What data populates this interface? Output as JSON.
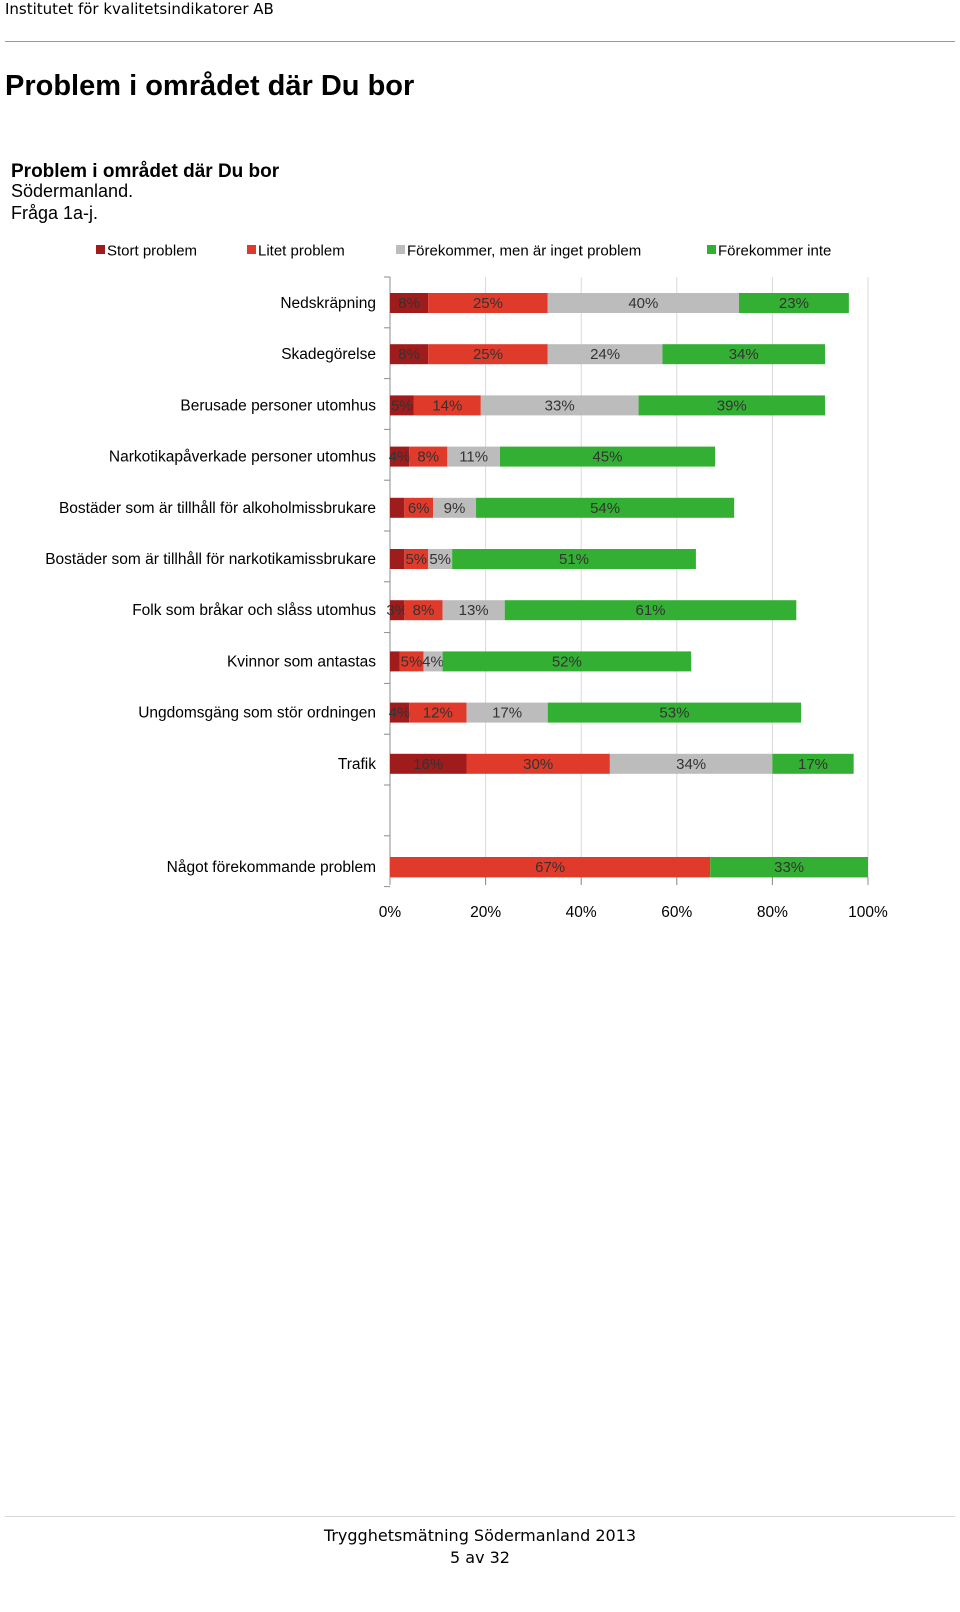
{
  "header": {
    "org": "Institutet för kvalitetsindikatorer AB"
  },
  "page_title": "Problem i området där Du bor",
  "chart_heading": {
    "title": "Problem i området där Du bor",
    "line1": "Södermanland.",
    "line2": "Fråga 1a-j."
  },
  "footer": {
    "line1": "Trygghetsmätning Södermanland 2013",
    "line2": "5 av 32"
  },
  "chart_data": {
    "type": "bar",
    "orientation": "horizontal",
    "stacked": true,
    "xlim": [
      0,
      100
    ],
    "x_ticks": [
      "0%",
      "20%",
      "40%",
      "60%",
      "80%",
      "100%"
    ],
    "grid": true,
    "legend_position": "top",
    "categories": [
      "Nedskräpning",
      "Skadegörelse",
      "Berusade personer utomhus",
      "Narkotikapåverkade personer utomhus",
      "Bostäder som är tillhåll för alkoholmissbrukare",
      "Bostäder som är tillhåll för narkotikamissbrukare",
      "Folk som bråkar och slåss utomhus",
      "Kvinnor som antastas",
      "Ungdomsgäng som stör ordningen",
      "Trafik"
    ],
    "series": [
      {
        "name": "Stort problem",
        "color": "#a01b1b",
        "values": [
          8,
          8,
          5,
          4,
          3,
          3,
          3,
          2,
          4,
          16
        ],
        "labels": [
          "8%",
          "8%",
          "5%",
          "4%",
          "",
          "",
          "3%",
          "",
          "4%",
          "16%"
        ]
      },
      {
        "name": "Litet problem",
        "color": "#e03a2a",
        "values": [
          25,
          25,
          14,
          8,
          6,
          5,
          8,
          5,
          12,
          30
        ],
        "labels": [
          "25%",
          "25%",
          "14%",
          "8%",
          "6%",
          "5%",
          "8%",
          "5%",
          "12%",
          "30%"
        ]
      },
      {
        "name": "Förekommer, men är inget problem",
        "color": "#bcbcbc",
        "values": [
          40,
          24,
          33,
          11,
          9,
          5,
          13,
          4,
          17,
          34
        ],
        "labels": [
          "40%",
          "24%",
          "33%",
          "11%",
          "9%",
          "5%",
          "13%",
          "4%",
          "17%",
          "34%"
        ]
      },
      {
        "name": "Förekommer inte",
        "color": "#33b033",
        "values": [
          23,
          34,
          39,
          45,
          54,
          51,
          61,
          52,
          53,
          17
        ],
        "labels": [
          "23%",
          "34%",
          "39%",
          "45%",
          "54%",
          "51%",
          "61%",
          "52%",
          "53%",
          "17%"
        ]
      }
    ],
    "summary": {
      "category": "Något förekommande problem",
      "values": [
        67,
        33
      ],
      "labels": [
        "67%",
        "33%"
      ],
      "colors": [
        "#e03a2a",
        "#33b033"
      ]
    }
  }
}
